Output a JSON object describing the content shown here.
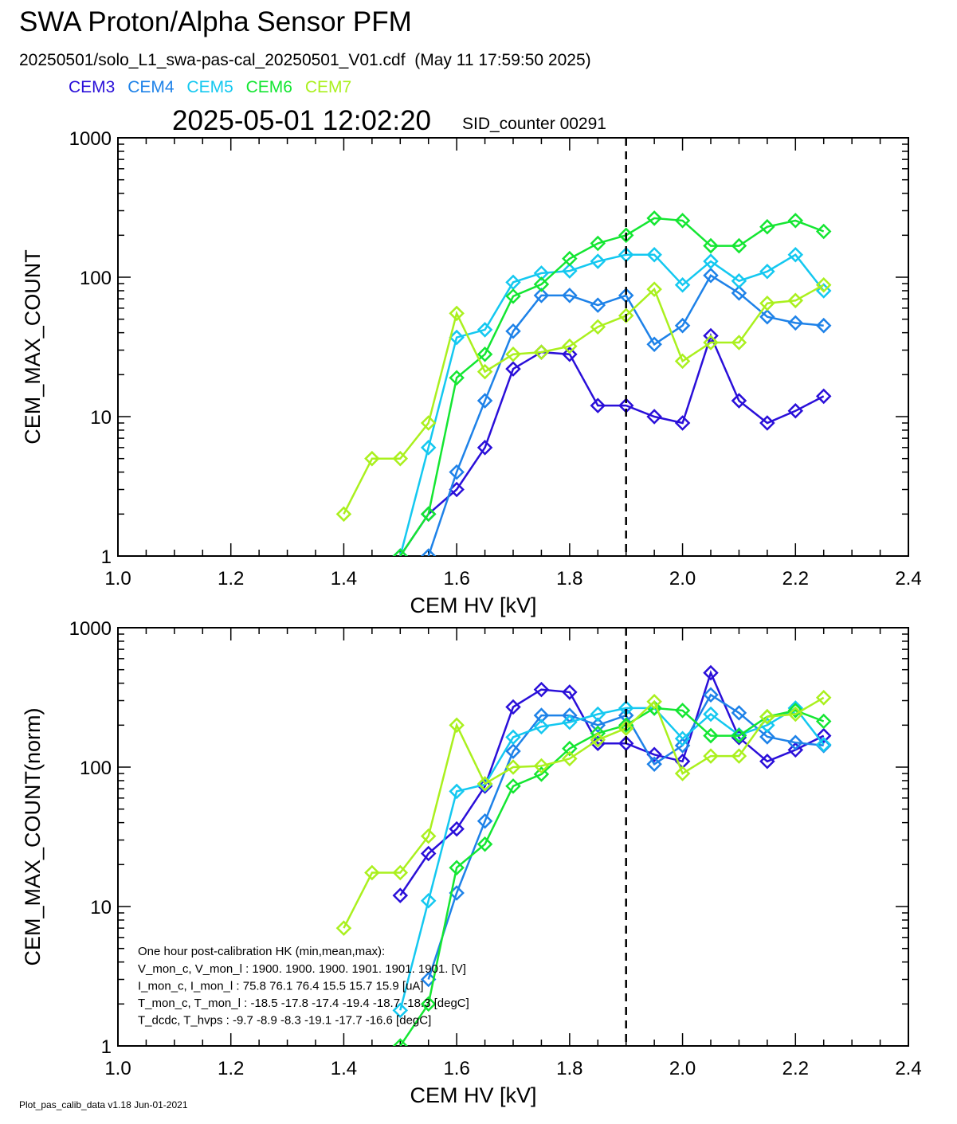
{
  "header": {
    "title": "SWA Proton/Alpha Sensor PFM",
    "subtitle": "20250501/solo_L1_swa-pas-cal_20250501_V01.cdf  (May 11 17:59:50 2025)",
    "timestamp": "2025-05-01 12:02:20",
    "sid": "SID_counter 00291"
  },
  "footer": "Plot_pas_calib_data v1.18 Jun-01-2021",
  "legend": [
    {
      "name": "CEM3",
      "color": "#2a0fd9"
    },
    {
      "name": "CEM4",
      "color": "#1e82e8"
    },
    {
      "name": "CEM5",
      "color": "#14c8f0"
    },
    {
      "name": "CEM6",
      "color": "#14e632"
    },
    {
      "name": "CEM7",
      "color": "#aaf01e"
    }
  ],
  "hk": {
    "title": "One hour post-calibration HK (min,mean,max):",
    "rows": [
      "V_mon_c, V_mon_l :   1900.  1900.  1900.     1901.  1901.  1901. [V]",
      "I_mon_c,  I_mon_l :     75.8   76.1   76.4     15.5   15.7   15.9  [uA]",
      "T_mon_c, T_mon_l :   -18.5  -17.8  -17.4     -19.4  -18.7  -18.3  [degC]",
      "T_dcdc,    T_hvps :      -9.7   -8.9   -8.3     -19.1  -17.7  -16.6  [degC]"
    ]
  },
  "chart_data": [
    {
      "type": "line",
      "panel": "top",
      "xlabel": "CEM HV [kV]",
      "ylabel": "CEM_MAX_COUNT",
      "xlim": [
        1.0,
        2.4
      ],
      "ylim": [
        1,
        1000
      ],
      "yscale": "log",
      "xticks": [
        "1.0",
        "1.2",
        "1.4",
        "1.6",
        "1.8",
        "2.0",
        "2.2",
        "2.4"
      ],
      "yticks": [
        "1",
        "10",
        "100",
        "1000"
      ],
      "vline": 1.9,
      "series": [
        {
          "name": "CEM3",
          "color": "#2a0fd9",
          "x": [
            1.5,
            1.55,
            1.6,
            1.65,
            1.7,
            1.75,
            1.8,
            1.85,
            1.9,
            1.95,
            2.0,
            2.05,
            2.1,
            2.15,
            2.2,
            2.25
          ],
          "y": [
            1,
            2,
            3,
            6,
            22,
            29,
            28,
            12,
            12,
            10,
            9,
            38,
            13,
            9,
            11,
            14
          ]
        },
        {
          "name": "CEM4",
          "color": "#1e82e8",
          "x": [
            1.55,
            1.6,
            1.65,
            1.7,
            1.75,
            1.8,
            1.85,
            1.9,
            1.95,
            2.0,
            2.05,
            2.1,
            2.15,
            2.2,
            2.25
          ],
          "y": [
            1,
            4,
            13,
            41,
            74,
            74,
            63,
            74,
            33,
            45,
            103,
            77,
            52,
            47,
            45
          ]
        },
        {
          "name": "CEM5",
          "color": "#14c8f0",
          "x": [
            1.5,
            1.55,
            1.6,
            1.65,
            1.7,
            1.75,
            1.8,
            1.85,
            1.9,
            1.95,
            2.0,
            2.05,
            2.1,
            2.15,
            2.2,
            2.25
          ],
          "y": [
            1,
            6,
            37,
            42,
            92,
            107,
            111,
            130,
            145,
            145,
            88,
            130,
            94,
            110,
            145,
            80
          ]
        },
        {
          "name": "CEM6",
          "color": "#14e632",
          "x": [
            1.5,
            1.55,
            1.6,
            1.65,
            1.7,
            1.75,
            1.8,
            1.85,
            1.9,
            1.95,
            2.0,
            2.05,
            2.1,
            2.15,
            2.2,
            2.25
          ],
          "y": [
            1,
            2,
            19,
            28,
            73,
            89,
            136,
            175,
            200,
            265,
            255,
            168,
            168,
            230,
            255,
            213
          ]
        },
        {
          "name": "CEM7",
          "color": "#aaf01e",
          "x": [
            1.4,
            1.45,
            1.5,
            1.55,
            1.6,
            1.65,
            1.7,
            1.75,
            1.8,
            1.85,
            1.9,
            1.95,
            2.0,
            2.05,
            2.1,
            2.15,
            2.2,
            2.25
          ],
          "y": [
            2,
            5,
            5,
            9,
            55,
            21,
            28,
            29,
            32,
            44,
            53,
            82,
            25,
            34,
            34,
            65,
            68,
            88
          ]
        }
      ]
    },
    {
      "type": "line",
      "panel": "bottom",
      "xlabel": "CEM HV [kV]",
      "ylabel": "CEM_MAX_COUNT(norm)",
      "xlim": [
        1.0,
        2.4
      ],
      "ylim": [
        1,
        1000
      ],
      "yscale": "log",
      "xticks": [
        "1.0",
        "1.2",
        "1.4",
        "1.6",
        "1.8",
        "2.0",
        "2.2",
        "2.4"
      ],
      "yticks": [
        "1",
        "10",
        "100",
        "1000"
      ],
      "vline": 1.9,
      "series": [
        {
          "name": "CEM3",
          "color": "#2a0fd9",
          "x": [
            1.5,
            1.55,
            1.6,
            1.65,
            1.7,
            1.75,
            1.8,
            1.85,
            1.9,
            1.95,
            2.0,
            2.05,
            2.1,
            2.15,
            2.2,
            2.25
          ],
          "y": [
            12,
            24,
            36,
            73,
            270,
            360,
            345,
            148,
            148,
            123,
            110,
            475,
            163,
            110,
            133,
            168
          ]
        },
        {
          "name": "CEM4",
          "color": "#1e82e8",
          "x": [
            1.55,
            1.6,
            1.65,
            1.7,
            1.75,
            1.8,
            1.85,
            1.9,
            1.95,
            2.0,
            2.05,
            2.1,
            2.15,
            2.2,
            2.25
          ],
          "y": [
            3,
            12.5,
            41,
            130,
            235,
            235,
            200,
            235,
            105,
            143,
            330,
            245,
            165,
            150,
            143
          ]
        },
        {
          "name": "CEM5",
          "color": "#14c8f0",
          "x": [
            1.5,
            1.55,
            1.6,
            1.65,
            1.7,
            1.75,
            1.8,
            1.85,
            1.9,
            1.95,
            2.0,
            2.05,
            2.1,
            2.15,
            2.2,
            2.25
          ],
          "y": [
            1.8,
            11,
            67,
            75,
            164,
            195,
            210,
            240,
            265,
            265,
            160,
            240,
            170,
            200,
            265,
            145
          ]
        },
        {
          "name": "CEM6",
          "color": "#14e632",
          "x": [
            1.5,
            1.55,
            1.6,
            1.65,
            1.7,
            1.75,
            1.8,
            1.85,
            1.9,
            1.95,
            2.0,
            2.05,
            2.1,
            2.15,
            2.2,
            2.25
          ],
          "y": [
            1,
            2,
            19,
            28,
            73,
            89,
            136,
            175,
            200,
            265,
            255,
            168,
            168,
            230,
            255,
            213
          ]
        },
        {
          "name": "CEM7",
          "color": "#aaf01e",
          "x": [
            1.4,
            1.45,
            1.5,
            1.55,
            1.6,
            1.65,
            1.7,
            1.75,
            1.8,
            1.85,
            1.9,
            1.95,
            2.0,
            2.05,
            2.1,
            2.15,
            2.2,
            2.25
          ],
          "y": [
            7,
            17.5,
            17.5,
            32,
            200,
            76,
            100,
            102,
            115,
            157,
            190,
            295,
            90,
            120,
            120,
            230,
            240,
            315
          ]
        }
      ]
    }
  ]
}
